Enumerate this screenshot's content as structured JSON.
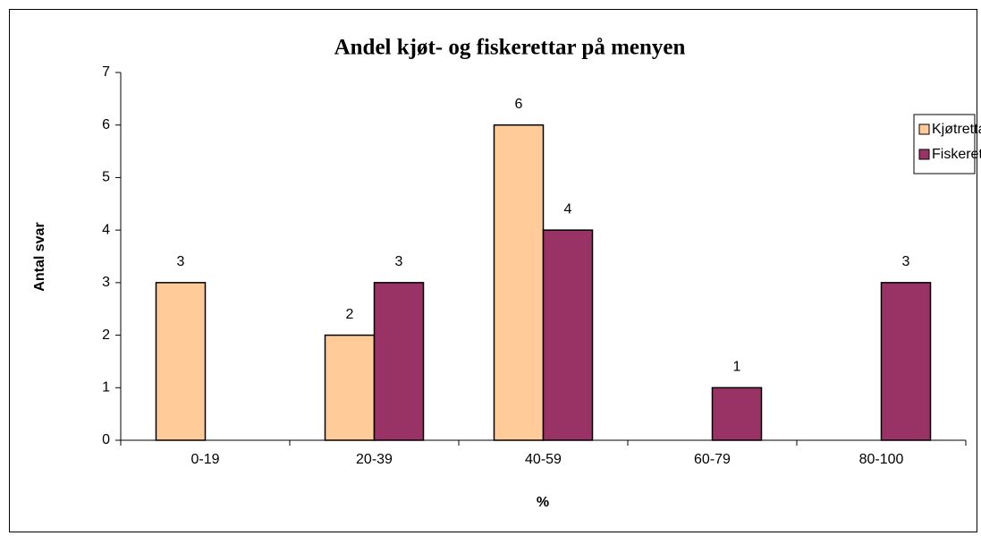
{
  "chart_data": {
    "type": "bar",
    "title": "Andel kjøt- og fiskerettar på menyen",
    "x_label": "%",
    "y_label": "Antal svar",
    "categories": [
      "0-19",
      "20-39",
      "40-59",
      "60-79",
      "80-100"
    ],
    "series": [
      {
        "name": "Kjøtrettar",
        "color": "#ffcc99",
        "values": [
          3,
          2,
          6,
          0,
          0
        ]
      },
      {
        "name": "Fiskerettar",
        "color": "#993366",
        "values": [
          0,
          3,
          4,
          1,
          3
        ]
      }
    ],
    "ylim": [
      0,
      7
    ],
    "yticks": [
      0,
      1,
      2,
      3,
      4,
      5,
      6,
      7
    ],
    "grid": false,
    "legend": "right"
  }
}
